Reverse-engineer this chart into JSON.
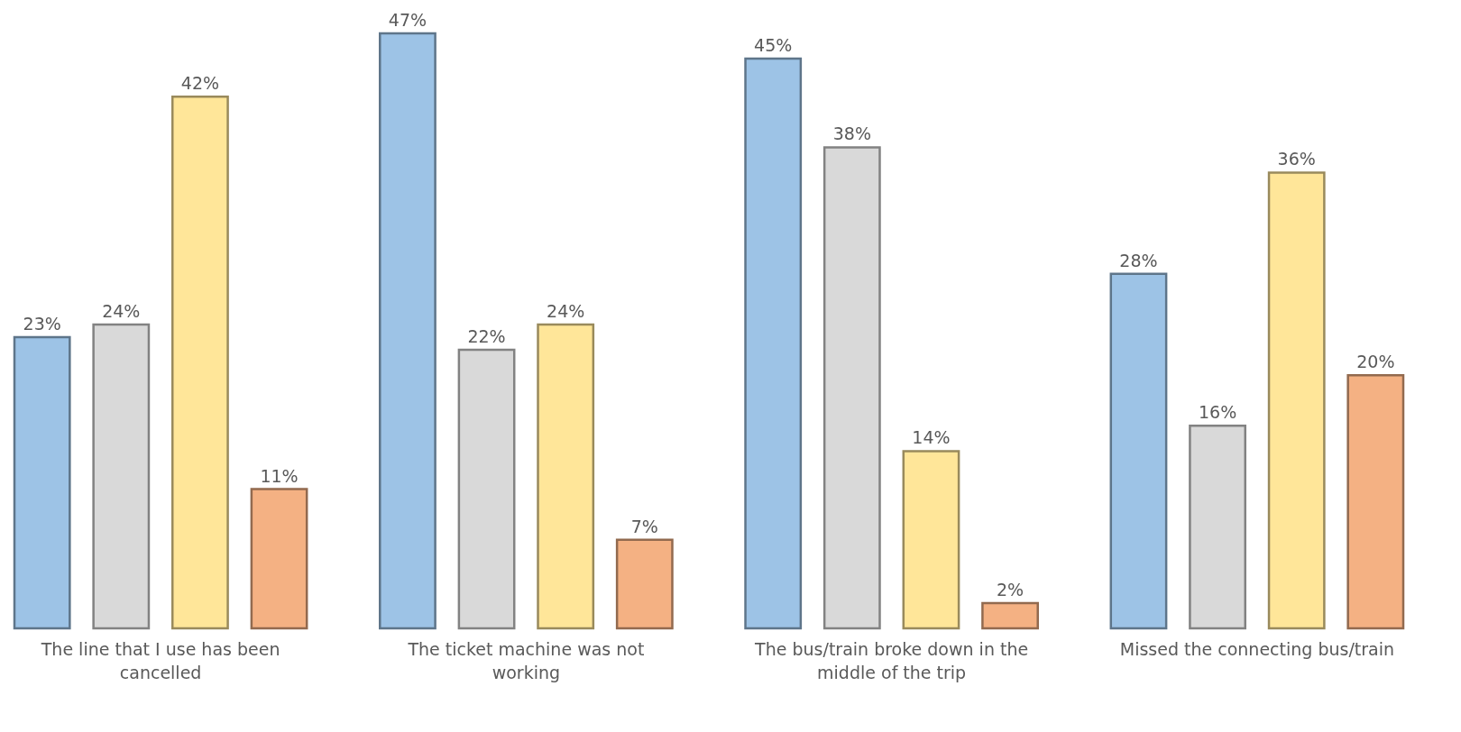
{
  "chart_data": {
    "type": "bar",
    "categories": [
      "The line that I use has been cancelled",
      "The ticket machine was not working",
      "The bus/train broke down in the middle of the trip",
      "Missed the connecting bus/train"
    ],
    "series": [
      {
        "color": "#9dc3e6",
        "values": [
          23,
          47,
          45,
          28
        ],
        "value_labels": [
          "23%",
          "47%",
          "45%",
          "28%"
        ]
      },
      {
        "color": "#d9d9d9",
        "values": [
          24,
          22,
          38,
          16
        ],
        "value_labels": [
          "24%",
          "22%",
          "38%",
          "16%"
        ]
      },
      {
        "color": "#ffe699",
        "values": [
          42,
          24,
          14,
          36
        ],
        "value_labels": [
          "42%",
          "24%",
          "14%",
          "36%"
        ]
      },
      {
        "color": "#f4b183",
        "values": [
          11,
          7,
          2,
          20
        ],
        "value_labels": [
          "11%",
          "7%",
          "2%",
          "20%"
        ]
      }
    ],
    "legend": false,
    "grid": false
  }
}
